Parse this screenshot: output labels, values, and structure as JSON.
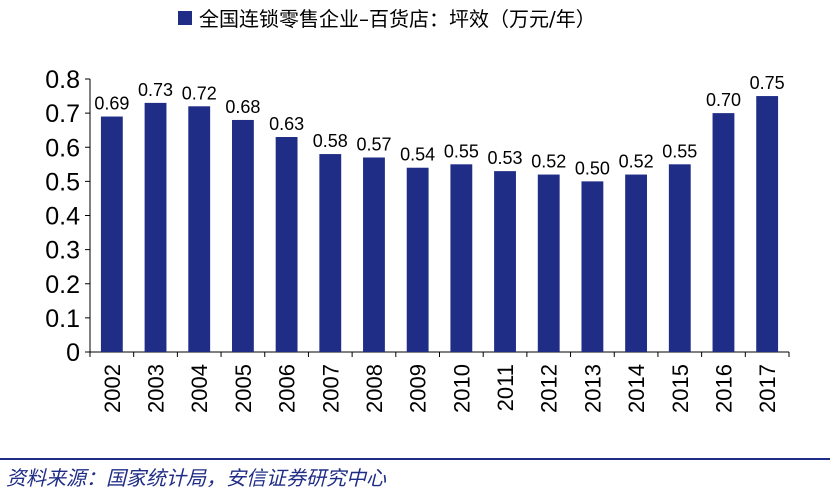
{
  "chart_data": {
    "type": "bar",
    "title": "",
    "legend": "全国连锁零售企业–百货店：坪效（万元/年）",
    "legend_position": "top-center",
    "xlabel": "",
    "ylabel": "",
    "ylim": [
      0,
      0.8
    ],
    "yticks": [
      0,
      0.1,
      0.2,
      0.3,
      0.4,
      0.5,
      0.6,
      0.7,
      0.8
    ],
    "grid": false,
    "bar_color": "#1f2d86",
    "categories": [
      "2002",
      "2003",
      "2004",
      "2005",
      "2006",
      "2007",
      "2008",
      "2009",
      "2010",
      "2011",
      "2012",
      "2013",
      "2014",
      "2015",
      "2016",
      "2017"
    ],
    "values": [
      0.69,
      0.73,
      0.72,
      0.68,
      0.63,
      0.58,
      0.57,
      0.54,
      0.55,
      0.53,
      0.52,
      0.5,
      0.52,
      0.55,
      0.7,
      0.75
    ]
  },
  "source": "资料来源：国家统计局，安信证券研究中心",
  "colors": {
    "accent": "#1f2d86"
  }
}
